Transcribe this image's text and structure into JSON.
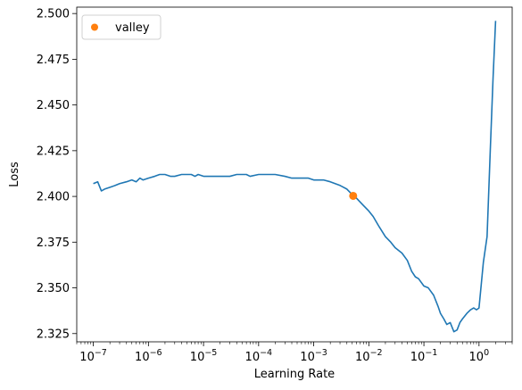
{
  "chart_data": {
    "type": "line",
    "xlabel": "Learning Rate",
    "ylabel": "Loss",
    "xscale": "log",
    "xlim": [
      5e-08,
      4.0
    ],
    "ylim": [
      2.3205,
      2.5035
    ],
    "grid": false,
    "legend": {
      "placement": "top-left",
      "entries": [
        "valley"
      ]
    },
    "x_ticks": [
      {
        "value": 1e-07,
        "base": "10",
        "exp": "−7"
      },
      {
        "value": 1e-06,
        "base": "10",
        "exp": "−6"
      },
      {
        "value": 1e-05,
        "base": "10",
        "exp": "−5"
      },
      {
        "value": 0.0001,
        "base": "10",
        "exp": "−4"
      },
      {
        "value": 0.001,
        "base": "10",
        "exp": "−3"
      },
      {
        "value": 0.01,
        "base": "10",
        "exp": "−2"
      },
      {
        "value": 0.1,
        "base": "10",
        "exp": "−1"
      },
      {
        "value": 1,
        "base": "10",
        "exp": "0"
      }
    ],
    "y_ticks": [
      {
        "value": 2.325,
        "label": "2.325"
      },
      {
        "value": 2.35,
        "label": "2.350"
      },
      {
        "value": 2.375,
        "label": "2.375"
      },
      {
        "value": 2.4,
        "label": "2.400"
      },
      {
        "value": 2.425,
        "label": "2.425"
      },
      {
        "value": 2.45,
        "label": "2.450"
      },
      {
        "value": 2.475,
        "label": "2.475"
      },
      {
        "value": 2.5,
        "label": "2.500"
      }
    ],
    "series": [
      {
        "color": "#1f77b4",
        "x": [
          1e-07,
          1.2e-07,
          1.4e-07,
          1.6e-07,
          2e-07,
          2.5e-07,
          3e-07,
          4e-07,
          5e-07,
          6e-07,
          7e-07,
          8e-07,
          1e-06,
          1.3e-06,
          1.6e-06,
          2e-06,
          2.5e-06,
          3e-06,
          4e-06,
          5e-06,
          6e-06,
          7e-06,
          8e-06,
          1e-05,
          1.3e-05,
          1.6e-05,
          2e-05,
          2.5e-05,
          3e-05,
          4e-05,
          5e-05,
          6e-05,
          7e-05,
          0.0001,
          0.00015,
          0.0002,
          0.0003,
          0.0004,
          0.0005,
          0.0006,
          0.0008,
          0.001,
          0.0015,
          0.002,
          0.003,
          0.004,
          0.005,
          0.006,
          0.008,
          0.01,
          0.012,
          0.015,
          0.02,
          0.025,
          0.03,
          0.04,
          0.05,
          0.06,
          0.07,
          0.08,
          0.1,
          0.12,
          0.15,
          0.18,
          0.2,
          0.23,
          0.26,
          0.3,
          0.35,
          0.4,
          0.45,
          0.5,
          0.6,
          0.7,
          0.8,
          0.9,
          1.0,
          1.2,
          1.4,
          1.6,
          1.8,
          2.0
        ],
        "y": [
          2.407,
          2.408,
          2.403,
          2.404,
          2.405,
          2.406,
          2.407,
          2.408,
          2.409,
          2.408,
          2.41,
          2.409,
          2.41,
          2.411,
          2.412,
          2.412,
          2.411,
          2.411,
          2.412,
          2.412,
          2.412,
          2.411,
          2.412,
          2.411,
          2.411,
          2.411,
          2.411,
          2.411,
          2.411,
          2.412,
          2.412,
          2.412,
          2.411,
          2.412,
          2.412,
          2.412,
          2.411,
          2.41,
          2.41,
          2.41,
          2.41,
          2.409,
          2.409,
          2.408,
          2.406,
          2.404,
          2.401,
          2.399,
          2.395,
          2.392,
          2.389,
          2.384,
          2.378,
          2.375,
          2.372,
          2.369,
          2.365,
          2.359,
          2.356,
          2.355,
          2.351,
          2.35,
          2.346,
          2.34,
          2.336,
          2.333,
          2.33,
          2.331,
          2.326,
          2.327,
          2.331,
          2.333,
          2.336,
          2.338,
          2.339,
          2.338,
          2.339,
          2.364,
          2.378,
          2.425,
          2.465,
          2.496
        ]
      },
      {
        "name": "valley",
        "color": "#ff7f0e",
        "marker": "o",
        "x": [
          0.0052
        ],
        "y": [
          2.4003
        ]
      }
    ]
  }
}
